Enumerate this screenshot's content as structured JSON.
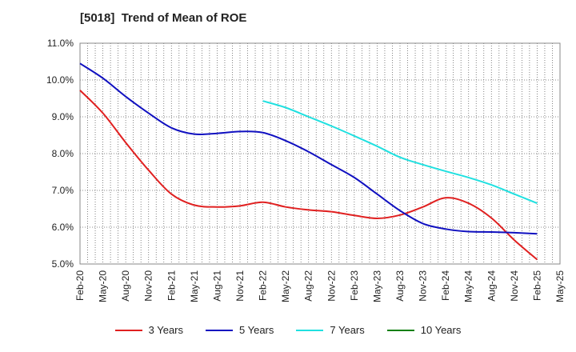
{
  "chart_data": {
    "type": "line",
    "title": "[5018]  Trend of Mean of ROE",
    "xlabel": "",
    "ylabel": "",
    "categories": [
      "Feb-20",
      "May-20",
      "Aug-20",
      "Nov-20",
      "Feb-21",
      "May-21",
      "Aug-21",
      "Nov-21",
      "Feb-22",
      "May-22",
      "Aug-22",
      "Nov-22",
      "Feb-23",
      "May-23",
      "Aug-23",
      "Nov-23",
      "Feb-24",
      "May-24",
      "Aug-24",
      "Nov-24",
      "Feb-25",
      "May-25"
    ],
    "yticks": [
      "5.0%",
      "6.0%",
      "7.0%",
      "8.0%",
      "9.0%",
      "10.0%",
      "11.0%"
    ],
    "ylim": [
      5.0,
      11.0
    ],
    "grid": true,
    "legend_position": "bottom",
    "series": [
      {
        "name": "3 Years",
        "color": "#e02020",
        "x": [
          "Feb-20",
          "May-20",
          "Aug-20",
          "Nov-20",
          "Feb-21",
          "May-21",
          "Aug-21",
          "Nov-21",
          "Feb-22",
          "May-22",
          "Aug-22",
          "Nov-22",
          "Feb-23",
          "May-23",
          "Aug-23",
          "Nov-23",
          "Feb-24",
          "May-24",
          "Aug-24",
          "Nov-24",
          "Feb-25"
        ],
        "values": [
          9.72,
          9.1,
          8.3,
          7.55,
          6.9,
          6.6,
          6.55,
          6.58,
          6.68,
          6.55,
          6.47,
          6.42,
          6.32,
          6.24,
          6.33,
          6.55,
          6.8,
          6.65,
          6.25,
          5.65,
          5.12
        ]
      },
      {
        "name": "5 Years",
        "color": "#1010c0",
        "x": [
          "Feb-20",
          "May-20",
          "Aug-20",
          "Nov-20",
          "Feb-21",
          "May-21",
          "Aug-21",
          "Nov-21",
          "Feb-22",
          "May-22",
          "Aug-22",
          "Nov-22",
          "Feb-23",
          "May-23",
          "Aug-23",
          "Nov-23",
          "Feb-24",
          "May-24",
          "Aug-24",
          "Nov-24",
          "Feb-25"
        ],
        "values": [
          10.45,
          10.05,
          9.55,
          9.1,
          8.7,
          8.53,
          8.55,
          8.6,
          8.57,
          8.35,
          8.05,
          7.7,
          7.35,
          6.9,
          6.45,
          6.1,
          5.95,
          5.88,
          5.87,
          5.85,
          5.82
        ]
      },
      {
        "name": "7 Years",
        "color": "#20e0e0",
        "x": [
          "Feb-22",
          "May-22",
          "Aug-22",
          "Nov-22",
          "Feb-23",
          "May-23",
          "Aug-23",
          "Nov-23",
          "Feb-24",
          "May-24",
          "Aug-24",
          "Nov-24",
          "Feb-25"
        ],
        "values": [
          9.43,
          9.25,
          9.0,
          8.75,
          8.48,
          8.2,
          7.9,
          7.7,
          7.52,
          7.35,
          7.15,
          6.9,
          6.65
        ]
      },
      {
        "name": "10 Years",
        "color": "#108010",
        "x": [],
        "values": []
      }
    ]
  }
}
